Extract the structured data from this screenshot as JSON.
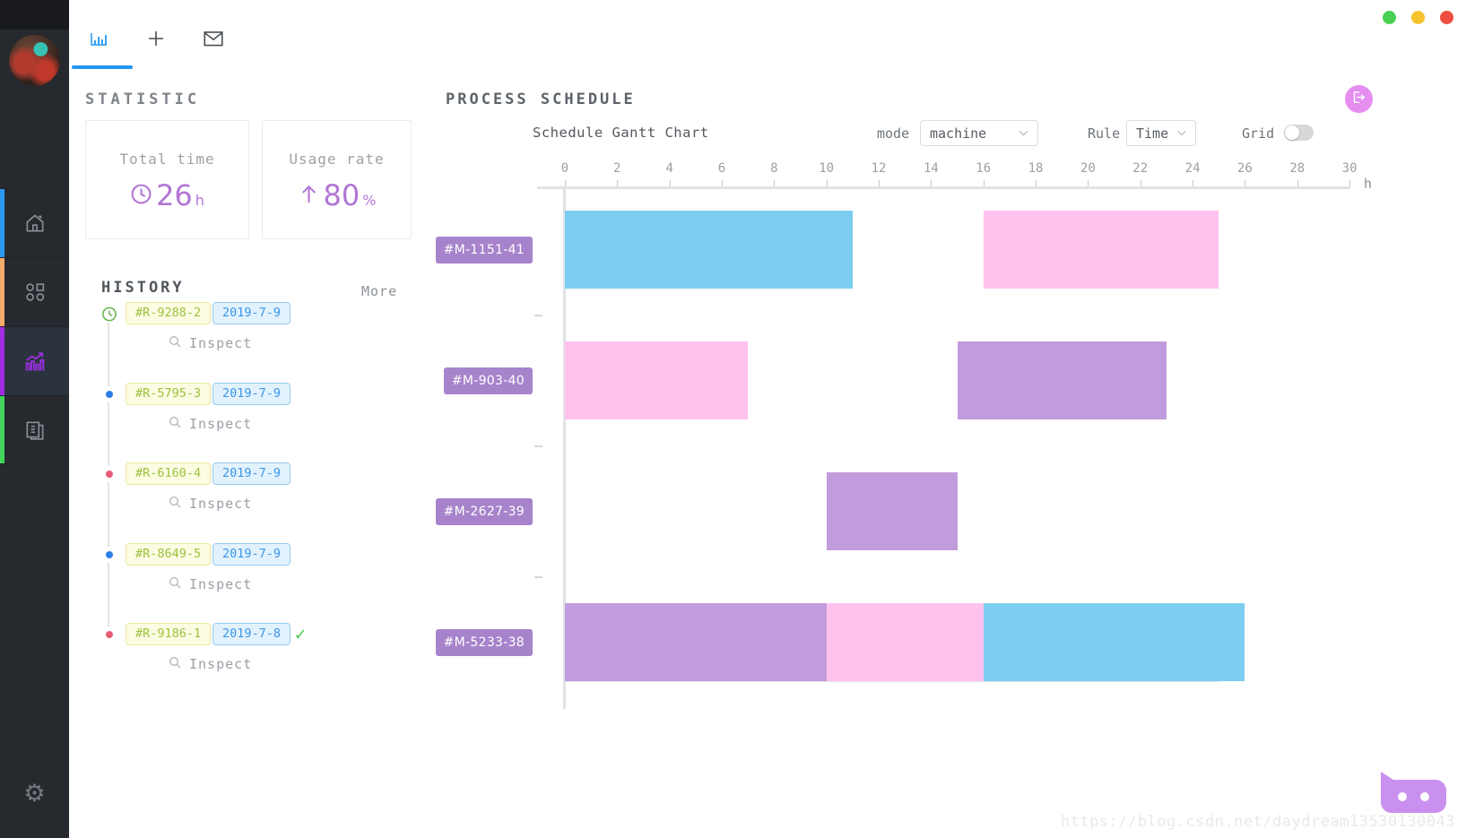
{
  "window": {
    "traffic_light_colors": {
      "green": "#48d053",
      "yellow": "#f6c22e",
      "red": "#ef4d3f"
    }
  },
  "sidebar": {
    "nav": [
      {
        "name": "home",
        "accent": "#2b99f0",
        "active": false
      },
      {
        "name": "apps",
        "accent": "#f5ab6c",
        "active": false
      },
      {
        "name": "analytics",
        "accent": "#a12ce4",
        "active": true
      },
      {
        "name": "documents",
        "accent": "#43d45c",
        "active": false
      }
    ],
    "settings_icon": "⚙"
  },
  "tabs": [
    {
      "name": "chart",
      "active": true
    },
    {
      "name": "new-tab",
      "active": false
    },
    {
      "name": "mail",
      "active": false
    }
  ],
  "statistic": {
    "title": "STATISTIC",
    "cards": [
      {
        "label": "Total time",
        "icon": "clock-icon",
        "value": "26",
        "unit": "h"
      },
      {
        "label": "Usage rate",
        "icon": "arrow-up-icon",
        "value": "80",
        "unit": "%"
      }
    ]
  },
  "history": {
    "title": "HISTORY",
    "more_label": "More",
    "inspect_label": "Inspect",
    "items": [
      {
        "id": "#R-9288-2",
        "date": "2019-7-9",
        "marker": "clock-green",
        "done": false
      },
      {
        "id": "#R-5795-3",
        "date": "2019-7-9",
        "marker": "ring-blue",
        "done": false
      },
      {
        "id": "#R-6160-4",
        "date": "2019-7-9",
        "marker": "ring-red",
        "done": false
      },
      {
        "id": "#R-8649-5",
        "date": "2019-7-9",
        "marker": "ring-blue",
        "done": false
      },
      {
        "id": "#R-9186-1",
        "date": "2019-7-8",
        "marker": "ring-red",
        "done": true
      }
    ]
  },
  "schedule": {
    "title": "PROCESS SCHEDULE",
    "chart_title": "Schedule Gantt Chart",
    "mode": {
      "label": "mode",
      "value": "machine"
    },
    "rule": {
      "label": "Rule",
      "value": "Time"
    },
    "grid": {
      "label": "Grid",
      "on": false
    }
  },
  "chart_data": {
    "type": "gantt",
    "title": "Schedule Gantt Chart",
    "x_axis": {
      "min": 0,
      "max": 30,
      "tick_step": 2,
      "unit": "h"
    },
    "grid": false,
    "colors": {
      "blue": "#7ccdef",
      "pink": "#ffc2ee",
      "purple": "#c19cdc",
      "row_label_bg": "#a783cb"
    },
    "rows": [
      {
        "machine": "#M-1151-41",
        "segments": [
          {
            "start": 0,
            "end": 11,
            "color": "blue"
          },
          {
            "start": 16,
            "end": 25,
            "color": "pink"
          }
        ]
      },
      {
        "machine": "#M-903-40",
        "segments": [
          {
            "start": 0,
            "end": 7,
            "color": "pink"
          },
          {
            "start": 15,
            "end": 23,
            "color": "purple"
          }
        ]
      },
      {
        "machine": "#M-2627-39",
        "segments": [
          {
            "start": 10,
            "end": 15,
            "color": "purple"
          }
        ]
      },
      {
        "machine": "#M-5233-38",
        "segments": [
          {
            "start": 0,
            "end": 10,
            "color": "purple"
          },
          {
            "start": 10,
            "end": 16,
            "color": "pink"
          },
          {
            "start": 16,
            "end": 26,
            "color": "blue"
          }
        ]
      }
    ]
  },
  "watermark": "https://blog.csdn.net/daydream13530130043"
}
